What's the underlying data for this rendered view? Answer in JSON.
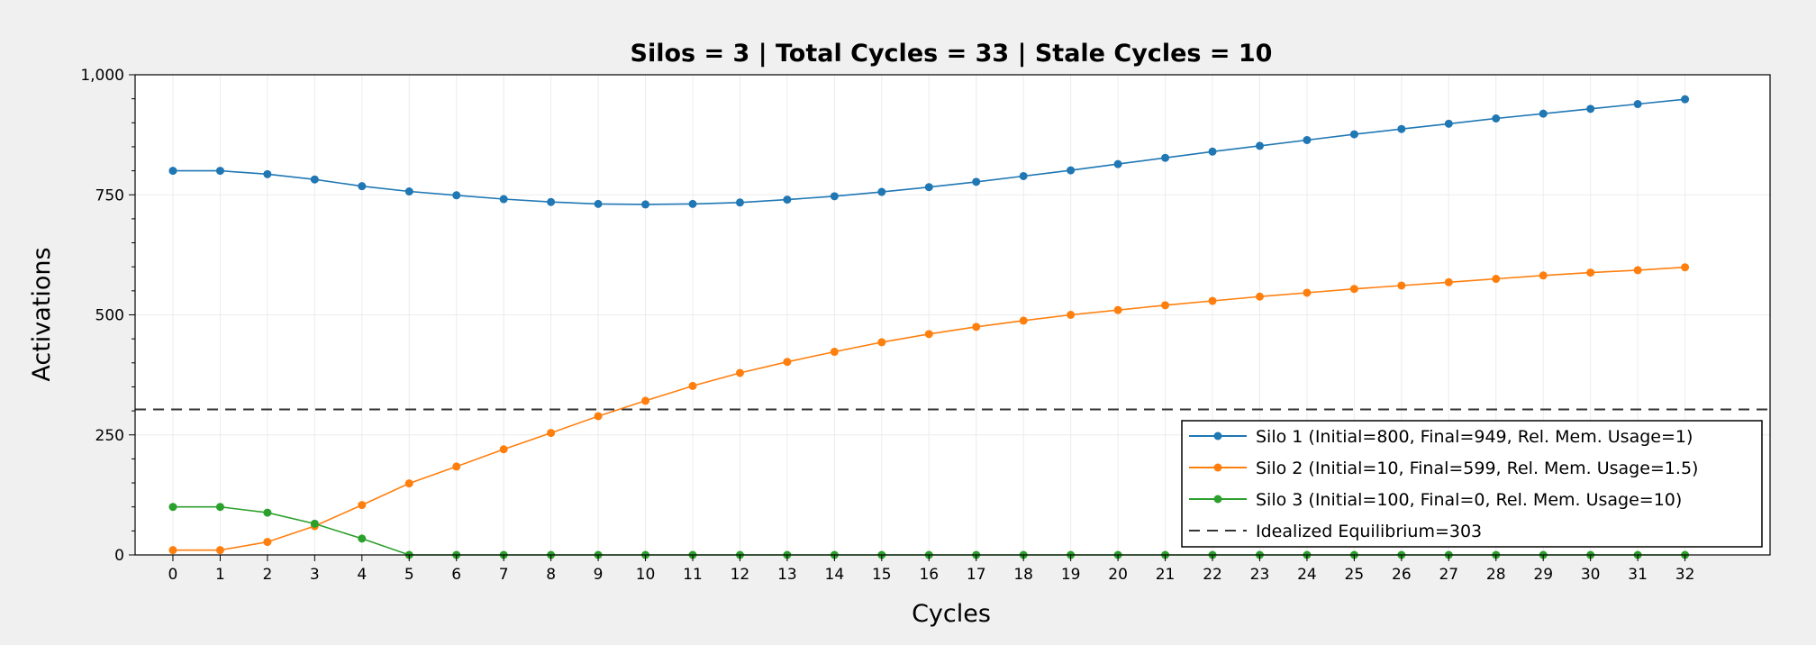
{
  "chart_data": {
    "type": "line",
    "title": "Silos = 3 | Total Cycles = 33 | Stale Cycles = 10",
    "xlabel": "Cycles",
    "ylabel": "Activations",
    "xlim": [
      -0.8,
      33.8
    ],
    "ylim": [
      0,
      1000
    ],
    "x_ticks": [
      0,
      1,
      2,
      3,
      4,
      5,
      6,
      7,
      8,
      9,
      10,
      11,
      12,
      13,
      14,
      15,
      16,
      17,
      18,
      19,
      20,
      21,
      22,
      23,
      24,
      25,
      26,
      27,
      28,
      29,
      30,
      31,
      32
    ],
    "y_ticks": [
      0,
      250,
      500,
      750,
      1000
    ],
    "y_tick_labels": [
      "0",
      "250",
      "500",
      "750",
      "1,000"
    ],
    "grid": true,
    "legend_position": "bottom-right",
    "x": [
      0,
      1,
      2,
      3,
      4,
      5,
      6,
      7,
      8,
      9,
      10,
      11,
      12,
      13,
      14,
      15,
      16,
      17,
      18,
      19,
      20,
      21,
      22,
      23,
      24,
      25,
      26,
      27,
      28,
      29,
      30,
      31,
      32
    ],
    "series": [
      {
        "name": "Silo 1 (Initial=800, Final=949, Rel. Mem. Usage=1)",
        "color": "#1f77b4",
        "values": [
          800,
          800,
          793,
          782,
          768,
          757,
          749,
          741,
          735,
          731,
          730,
          731,
          734,
          740,
          747,
          756,
          766,
          777,
          789,
          801,
          814,
          827,
          840,
          852,
          864,
          876,
          887,
          898,
          909,
          919,
          929,
          939,
          949
        ]
      },
      {
        "name": "Silo 2 (Initial=10, Final=599, Rel. Mem. Usage=1.5)",
        "color": "#ff7f0e",
        "values": [
          10,
          10,
          27,
          60,
          104,
          149,
          184,
          220,
          254,
          289,
          321,
          352,
          379,
          402,
          423,
          443,
          460,
          475,
          488,
          500,
          510,
          520,
          529,
          538,
          546,
          554,
          561,
          568,
          575,
          582,
          588,
          593,
          599
        ]
      },
      {
        "name": "Silo 3 (Initial=100, Final=0, Rel. Mem. Usage=10)",
        "color": "#2ca02c",
        "values": [
          100,
          100,
          88,
          65,
          34,
          0,
          0,
          0,
          0,
          0,
          0,
          0,
          0,
          0,
          0,
          0,
          0,
          0,
          0,
          0,
          0,
          0,
          0,
          0,
          0,
          0,
          0,
          0,
          0,
          0,
          0,
          0,
          0
        ]
      }
    ],
    "reference_line": {
      "name": "Idealized Equilibrium=303",
      "value": 303,
      "color": "#333333",
      "style": "dashed"
    }
  }
}
